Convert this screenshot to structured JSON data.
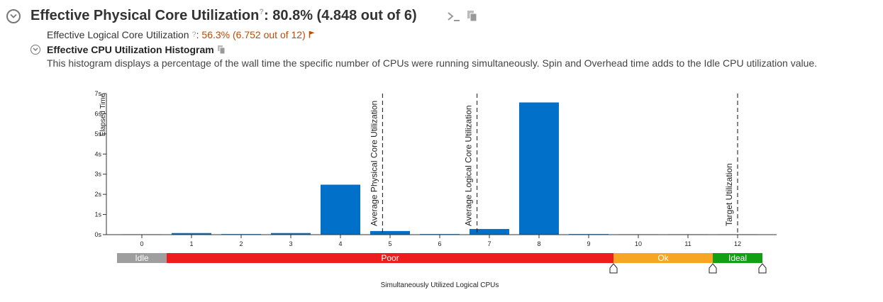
{
  "header": {
    "title": "Effective Physical Core Utilization",
    "help_glyph": "?",
    "value": ": 80.8% (4.848 out of 6)"
  },
  "logical": {
    "label": "Effective Logical Core Utilization",
    "help_glyph": "?",
    "colon": ":",
    "value": "56.3% (6.752 out of 12)"
  },
  "histogram": {
    "title": "Effective CPU Utilization Histogram",
    "description": "This histogram displays a percentage of the wall time the specific number of CPUs were running simultaneously. Spin and Overhead time adds to the Idle CPU utilization value."
  },
  "colors": {
    "bar": "#0070c8",
    "idle": "#9e9e9e",
    "poor": "#ee1c1c",
    "ok": "#f6a623",
    "ideal": "#12a012",
    "warn": "#c04a00"
  },
  "chart_data": {
    "type": "bar",
    "xlabel": "Simultaneously Utilized Logical CPUs",
    "ylabel": "Elapsed Time",
    "categories": [
      "0",
      "1",
      "2",
      "3",
      "4",
      "5",
      "6",
      "7",
      "8",
      "9",
      "10",
      "11",
      "12"
    ],
    "values": [
      0.02,
      0.08,
      0.03,
      0.08,
      2.48,
      0.18,
      0.03,
      0.28,
      6.56,
      0.03,
      0.02,
      0.02,
      0.02
    ],
    "ylim": [
      0,
      7
    ],
    "yticks": [
      {
        "value": 0,
        "label": "0s"
      },
      {
        "value": 1,
        "label": "1s"
      },
      {
        "value": 2,
        "label": "2s"
      },
      {
        "value": 3,
        "label": "3s"
      },
      {
        "value": 4,
        "label": "4s"
      },
      {
        "value": 5,
        "label": "5s"
      },
      {
        "value": 6,
        "label": "6s"
      },
      {
        "value": 7,
        "label": "7s"
      }
    ],
    "reference_lines": [
      {
        "name": "avg-physical-core-line",
        "label": "Average Physical Core Utilization",
        "x": 4.848
      },
      {
        "name": "avg-logical-core-line",
        "label": "Average Logical Core Utilization",
        "x": 6.752
      },
      {
        "name": "target-utilization-line",
        "label": "Target Utilization",
        "x": 12
      }
    ],
    "zones": [
      {
        "name": "idle",
        "label": "Idle",
        "from": -0.5,
        "to": 0.5,
        "color": "#9e9e9e"
      },
      {
        "name": "poor",
        "label": "Poor",
        "from": 0.5,
        "to": 9.5,
        "color": "#ee1c1c"
      },
      {
        "name": "ok",
        "label": "Ok",
        "from": 9.5,
        "to": 11.5,
        "color": "#f6a623"
      },
      {
        "name": "ideal",
        "label": "Ideal",
        "from": 11.5,
        "to": 12.5,
        "color": "#12a012"
      }
    ],
    "zone_handles": [
      9.5,
      11.5,
      12.5
    ]
  }
}
